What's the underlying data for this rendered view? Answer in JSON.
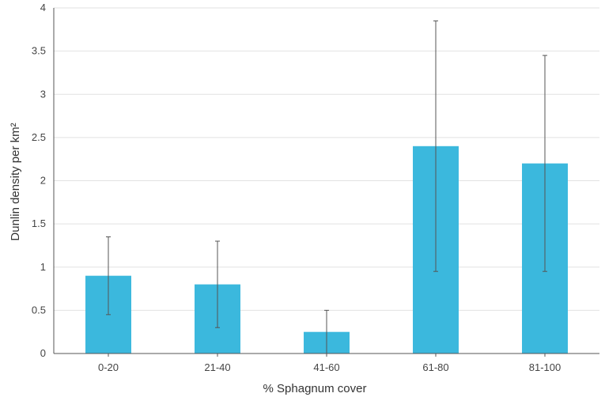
{
  "chart_data": {
    "type": "bar",
    "categories": [
      "0-20",
      "21-40",
      "41-60",
      "61-80",
      "81-100"
    ],
    "values": [
      0.9,
      0.8,
      0.25,
      2.4,
      2.2
    ],
    "error_low": [
      0.45,
      0.3,
      0.0,
      0.95,
      0.95
    ],
    "error_high": [
      1.35,
      1.3,
      0.5,
      3.85,
      3.45
    ],
    "xlabel": "% Sphagnum cover",
    "ylabel": "Dunlin density per km²",
    "ylim": [
      0,
      4
    ],
    "yticks": [
      "0",
      "0.5",
      "1",
      "1.5",
      "2",
      "2.5",
      "3",
      "3.5",
      "4"
    ],
    "grid": true,
    "bar_color": "#3bb8dd"
  }
}
